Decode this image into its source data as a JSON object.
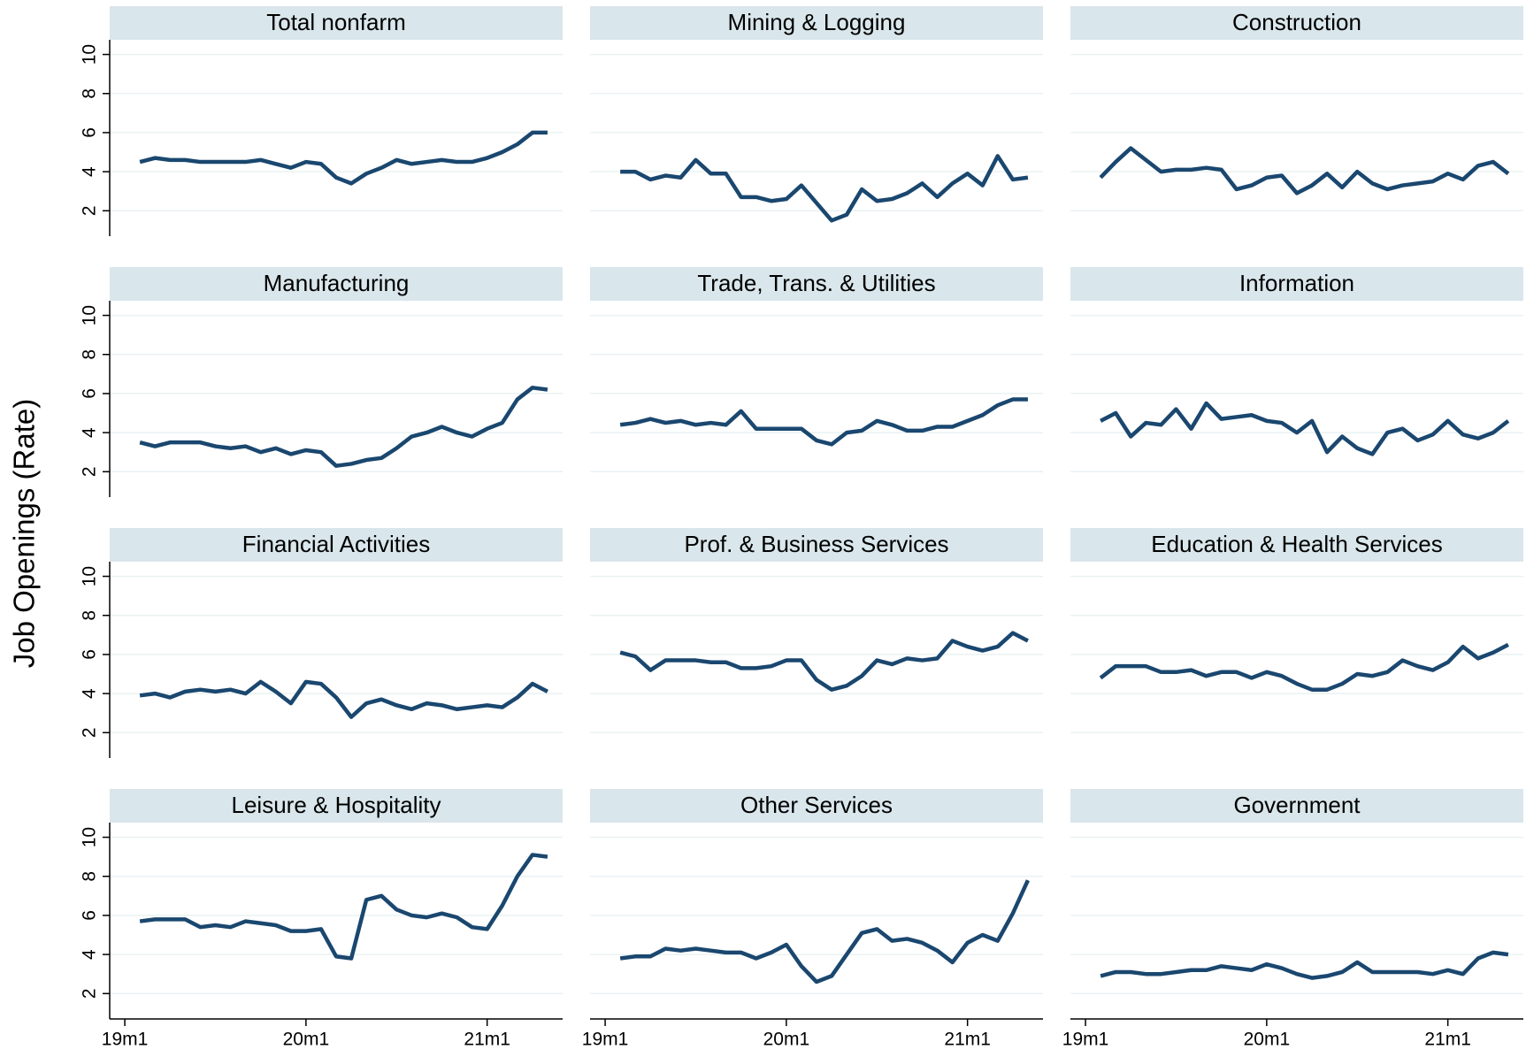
{
  "chart_data": {
    "type": "line",
    "ylabel": "Job Openings (Rate)",
    "color": "#1a476f",
    "grid": true,
    "x": [
      709,
      710,
      711,
      712,
      713,
      714,
      715,
      716,
      717,
      718,
      719,
      720,
      721,
      722,
      723,
      724,
      725,
      726,
      727,
      728,
      729,
      730,
      731,
      732,
      733,
      734,
      735,
      736
    ],
    "xlim": [
      707,
      737
    ],
    "xticks": [
      {
        "value": 708,
        "label": "19m1"
      },
      {
        "value": 720,
        "label": "20m1"
      },
      {
        "value": 732,
        "label": "21m1"
      }
    ],
    "ylim": [
      0.7,
      10.75
    ],
    "yticks": [
      2,
      4,
      6,
      8,
      10
    ],
    "series": [
      {
        "name": "Total nonfarm",
        "values": [
          4.5,
          4.7,
          4.6,
          4.6,
          4.5,
          4.5,
          4.5,
          4.5,
          4.6,
          4.4,
          4.2,
          4.5,
          4.4,
          3.7,
          3.4,
          3.9,
          4.2,
          4.6,
          4.4,
          4.5,
          4.6,
          4.5,
          4.5,
          4.7,
          5.0,
          5.4,
          6.0,
          6.0
        ]
      },
      {
        "name": "Mining & Logging",
        "values": [
          4.0,
          4.0,
          3.6,
          3.8,
          3.7,
          4.6,
          3.9,
          3.9,
          2.7,
          2.7,
          2.5,
          2.6,
          3.3,
          2.4,
          1.5,
          1.8,
          3.1,
          2.5,
          2.6,
          2.9,
          3.4,
          2.7,
          3.4,
          3.9,
          3.3,
          4.8,
          3.6,
          3.7
        ]
      },
      {
        "name": "Construction",
        "values": [
          3.7,
          4.5,
          5.2,
          4.6,
          4.0,
          4.1,
          4.1,
          4.2,
          4.1,
          3.1,
          3.3,
          3.7,
          3.8,
          2.9,
          3.3,
          3.9,
          3.2,
          4.0,
          3.4,
          3.1,
          3.3,
          3.4,
          3.5,
          3.9,
          3.6,
          4.3,
          4.5,
          3.9
        ]
      },
      {
        "name": "Manufacturing",
        "values": [
          3.5,
          3.3,
          3.5,
          3.5,
          3.5,
          3.3,
          3.2,
          3.3,
          3.0,
          3.2,
          2.9,
          3.1,
          3.0,
          2.3,
          2.4,
          2.6,
          2.7,
          3.2,
          3.8,
          4.0,
          4.3,
          4.0,
          3.8,
          4.2,
          4.5,
          5.7,
          6.3,
          6.2
        ]
      },
      {
        "name": "Trade, Trans. & Utilities",
        "values": [
          4.4,
          4.5,
          4.7,
          4.5,
          4.6,
          4.4,
          4.5,
          4.4,
          5.1,
          4.2,
          4.2,
          4.2,
          4.2,
          3.6,
          3.4,
          4.0,
          4.1,
          4.6,
          4.4,
          4.1,
          4.1,
          4.3,
          4.3,
          4.6,
          4.9,
          5.4,
          5.7,
          5.7
        ]
      },
      {
        "name": "Information",
        "values": [
          4.6,
          5.0,
          3.8,
          4.5,
          4.4,
          5.2,
          4.2,
          5.5,
          4.7,
          4.8,
          4.9,
          4.6,
          4.5,
          4.0,
          4.6,
          3.0,
          3.8,
          3.2,
          2.9,
          4.0,
          4.2,
          3.6,
          3.9,
          4.6,
          3.9,
          3.7,
          4.0,
          4.6
        ]
      },
      {
        "name": "Financial Activities",
        "values": [
          3.9,
          4.0,
          3.8,
          4.1,
          4.2,
          4.1,
          4.2,
          4.0,
          4.6,
          4.1,
          3.5,
          4.6,
          4.5,
          3.8,
          2.8,
          3.5,
          3.7,
          3.4,
          3.2,
          3.5,
          3.4,
          3.2,
          3.3,
          3.4,
          3.3,
          3.8,
          4.5,
          4.1
        ]
      },
      {
        "name": "Prof. & Business Services",
        "values": [
          6.1,
          5.9,
          5.2,
          5.7,
          5.7,
          5.7,
          5.6,
          5.6,
          5.3,
          5.3,
          5.4,
          5.7,
          5.7,
          4.7,
          4.2,
          4.4,
          4.9,
          5.7,
          5.5,
          5.8,
          5.7,
          5.8,
          6.7,
          6.4,
          6.2,
          6.4,
          7.1,
          6.7
        ]
      },
      {
        "name": "Education & Health Services",
        "values": [
          4.8,
          5.4,
          5.4,
          5.4,
          5.1,
          5.1,
          5.2,
          4.9,
          5.1,
          5.1,
          4.8,
          5.1,
          4.9,
          4.5,
          4.2,
          4.2,
          4.5,
          5.0,
          4.9,
          5.1,
          5.7,
          5.4,
          5.2,
          5.6,
          6.4,
          5.8,
          6.1,
          6.5
        ]
      },
      {
        "name": "Leisure & Hospitality",
        "values": [
          5.7,
          5.8,
          5.8,
          5.8,
          5.4,
          5.5,
          5.4,
          5.7,
          5.6,
          5.5,
          5.2,
          5.2,
          5.3,
          3.9,
          3.8,
          6.8,
          7.0,
          6.3,
          6.0,
          5.9,
          6.1,
          5.9,
          5.4,
          5.3,
          6.5,
          8.0,
          9.1,
          9.0
        ]
      },
      {
        "name": "Other Services",
        "values": [
          3.8,
          3.9,
          3.9,
          4.3,
          4.2,
          4.3,
          4.2,
          4.1,
          4.1,
          3.8,
          4.1,
          4.5,
          3.4,
          2.6,
          2.9,
          4.0,
          5.1,
          5.3,
          4.7,
          4.8,
          4.6,
          4.2,
          3.6,
          4.6,
          5.0,
          4.7,
          6.1,
          7.8
        ]
      },
      {
        "name": "Government",
        "values": [
          2.9,
          3.1,
          3.1,
          3.0,
          3.0,
          3.1,
          3.2,
          3.2,
          3.4,
          3.3,
          3.2,
          3.5,
          3.3,
          3.0,
          2.8,
          2.9,
          3.1,
          3.6,
          3.1,
          3.1,
          3.1,
          3.1,
          3.0,
          3.2,
          3.0,
          3.8,
          4.1,
          4.0
        ]
      }
    ]
  }
}
